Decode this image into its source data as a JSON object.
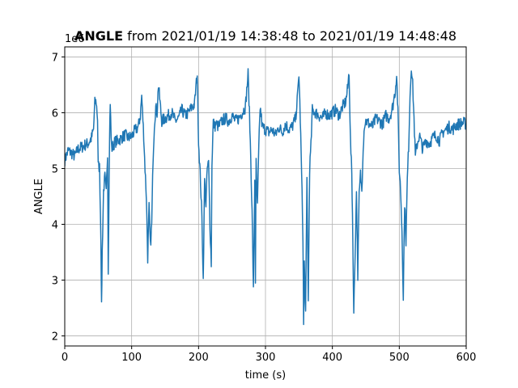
{
  "chart_data": {
    "type": "line",
    "title_bold": "ANGLE",
    "title_rest": " from 2021/01/19 14:38:48 to 2021/01/19 14:48:48",
    "xlabel": "time (s)",
    "ylabel": "ANGLE",
    "y_offset_label": "1e6",
    "xlim": [
      0,
      600
    ],
    "ylim": [
      1.82,
      7.18
    ],
    "x_ticks": [
      0,
      100,
      200,
      300,
      400,
      500,
      600
    ],
    "y_ticks": [
      2,
      3,
      4,
      5,
      6,
      7
    ],
    "grid": true,
    "series": [
      {
        "color": "#1f77b4",
        "x": [
          0,
          5,
          10,
          15,
          20,
          25,
          30,
          35,
          40,
          43,
          45,
          47,
          49,
          50,
          52,
          54,
          55,
          56,
          58,
          60,
          62,
          64,
          65,
          67,
          68,
          70,
          75,
          80,
          85,
          90,
          95,
          100,
          105,
          110,
          113,
          115,
          118,
          120,
          122,
          124,
          126,
          128,
          130,
          132,
          134,
          136,
          138,
          140,
          145,
          150,
          155,
          160,
          165,
          170,
          175,
          180,
          185,
          190,
          194,
          196,
          198,
          200,
          203,
          205,
          207,
          209,
          211,
          213,
          215,
          217,
          219,
          220,
          222,
          224,
          226,
          230,
          235,
          240,
          245,
          250,
          255,
          260,
          265,
          270,
          272,
          274,
          276,
          278,
          280,
          282,
          284,
          285,
          286,
          288,
          290,
          292,
          294,
          295,
          300,
          305,
          310,
          315,
          320,
          325,
          330,
          335,
          340,
          345,
          348,
          350,
          352,
          354,
          356,
          357,
          358,
          360,
          362,
          364,
          366,
          368,
          370,
          375,
          380,
          385,
          390,
          395,
          400,
          405,
          410,
          415,
          420,
          423,
          425,
          427,
          429,
          430,
          432,
          434,
          436,
          438,
          440,
          442,
          444,
          446,
          448,
          450,
          455,
          460,
          465,
          470,
          475,
          480,
          485,
          490,
          492,
          494,
          496,
          498,
          500,
          502,
          504,
          506,
          508,
          510,
          512,
          514,
          516,
          518,
          520,
          522,
          524,
          526,
          530,
          535,
          540,
          545,
          550,
          555,
          560,
          565,
          570,
          575,
          580,
          585,
          590,
          595,
          600
        ],
        "y": [
          5.15,
          5.32,
          5.28,
          5.22,
          5.35,
          5.38,
          5.42,
          5.45,
          5.55,
          5.7,
          6.18,
          6.2,
          5.9,
          5.05,
          5.02,
          3.8,
          2.5,
          3.5,
          4.6,
          4.85,
          4.55,
          5.3,
          3.2,
          5.6,
          6.15,
          5.35,
          5.48,
          5.5,
          5.55,
          5.6,
          5.55,
          5.58,
          5.68,
          5.75,
          5.95,
          6.3,
          5.6,
          5.0,
          4.5,
          3.4,
          4.3,
          3.6,
          4.0,
          5.2,
          5.8,
          6.1,
          6.0,
          6.5,
          5.85,
          5.9,
          5.95,
          6.0,
          5.85,
          5.9,
          6.05,
          5.95,
          6.0,
          6.1,
          6.15,
          6.45,
          6.7,
          5.5,
          4.75,
          4.1,
          3.0,
          4.8,
          4.35,
          5.0,
          5.1,
          4.0,
          3.3,
          5.1,
          5.85,
          5.75,
          5.8,
          5.75,
          5.85,
          5.9,
          5.85,
          5.95,
          5.85,
          5.9,
          6.0,
          6.1,
          6.4,
          6.7,
          6.0,
          5.2,
          4.2,
          2.8,
          4.8,
          3.0,
          5.1,
          4.3,
          5.35,
          6.1,
          5.9,
          5.75,
          5.7,
          5.65,
          5.7,
          5.6,
          5.75,
          5.65,
          5.8,
          5.7,
          5.75,
          5.9,
          6.3,
          6.7,
          5.9,
          4.9,
          3.8,
          2.2,
          3.3,
          2.4,
          4.8,
          2.6,
          5.0,
          5.4,
          6.05,
          6.0,
          5.95,
          5.9,
          6.0,
          5.95,
          6.0,
          6.05,
          5.95,
          6.1,
          6.2,
          6.45,
          6.75,
          5.5,
          4.9,
          4.2,
          2.4,
          3.5,
          4.6,
          3.1,
          4.5,
          4.9,
          4.6,
          5.4,
          5.8,
          5.85,
          5.8,
          5.75,
          5.9,
          5.85,
          5.8,
          5.95,
          5.9,
          6.1,
          6.25,
          6.4,
          6.7,
          6.0,
          5.0,
          4.6,
          3.9,
          2.7,
          4.4,
          3.7,
          4.8,
          5.4,
          6.3,
          6.85,
          6.5,
          5.9,
          5.2,
          5.4,
          5.6,
          5.35,
          5.5,
          5.45,
          5.55,
          5.6,
          5.5,
          5.65,
          5.7,
          5.75,
          5.7,
          5.78,
          5.8,
          5.82,
          5.8
        ]
      }
    ]
  }
}
